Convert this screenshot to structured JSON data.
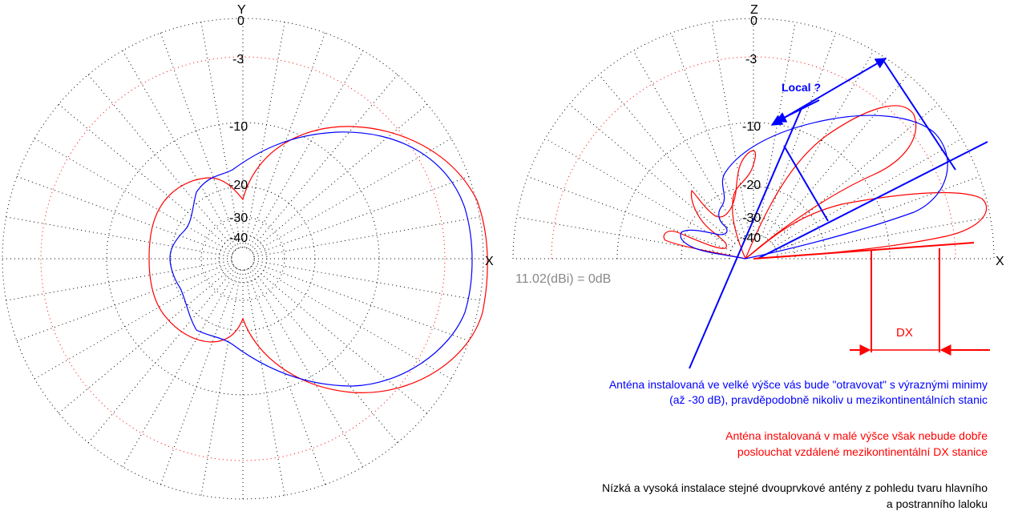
{
  "left_plot": {
    "axis_top": "Y",
    "axis_right": "X",
    "ring_labels": [
      "0",
      "-3",
      "-10",
      "-20",
      "-30",
      "-40"
    ]
  },
  "right_plot": {
    "axis_top": "Z",
    "axis_right": "X",
    "ring_labels": [
      "0",
      "-3",
      "-10",
      "-20",
      "-30",
      "-40"
    ]
  },
  "reference_label": "11.02(dBi) = 0dB",
  "annotations": {
    "local": "Local ?",
    "dx": "DX"
  },
  "notes": {
    "high_install": [
      "Anténa instalovaná ve velké výšce vás bude \"otravovat\" s výraznými minimy",
      "(až -30 dB), pravděpodobně nikoliv u mezikontinentálních stanic"
    ],
    "low_install": [
      "Anténa instalovaná v malé výšce však nebude dobře",
      "poslouchat vzdálené mezikontinentální DX stanice"
    ],
    "caption": [
      "Nízká a vysoká instalace stejné dvouprvkové antény z pohledu tvaru hlavního",
      "a postranního laloku"
    ]
  },
  "colors": {
    "low_antenna": "#ff0000",
    "high_antenna": "#0000ff",
    "grid": "#000000",
    "reference_text": "#888888"
  }
}
